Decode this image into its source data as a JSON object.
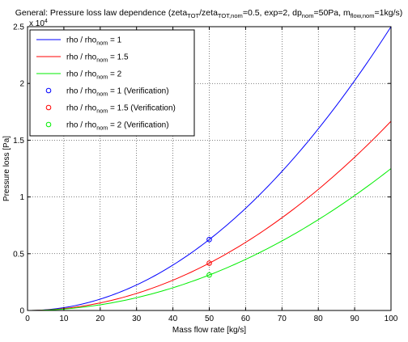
{
  "chart_data": {
    "type": "line",
    "title": "General: Pressure loss law dependence (zeta_TOT/zeta_TOT,nom=0.5, exp=2, dp_nom=50Pa, m_flow,nom=1kg/s)",
    "title_parts": [
      {
        "t": "General: Pressure loss law dependence (zeta",
        "sub": false
      },
      {
        "t": "TOT",
        "sub": true
      },
      {
        "t": "/zeta",
        "sub": false
      },
      {
        "t": "TOT,nom",
        "sub": true
      },
      {
        "t": "=0.5, exp=2, dp",
        "sub": false
      },
      {
        "t": "nom",
        "sub": true
      },
      {
        "t": "=50Pa, m",
        "sub": false
      },
      {
        "t": "flow,nom",
        "sub": true
      },
      {
        "t": "=1kg/s)",
        "sub": false
      }
    ],
    "xlabel": "Mass flow rate [kg/s]",
    "ylabel": "Pressure loss [Pa]",
    "y_exponent_label": "x 10",
    "y_exponent": "4",
    "xlim": [
      0,
      100
    ],
    "ylim": [
      0,
      25000
    ],
    "xticks": [
      0,
      10,
      20,
      30,
      40,
      50,
      60,
      70,
      80,
      90,
      100
    ],
    "yticks": [
      0,
      5000,
      10000,
      15000,
      20000,
      25000
    ],
    "ytick_labels": [
      "0",
      "0.5",
      "1",
      "1.5",
      "2",
      "2.5"
    ],
    "grid": true,
    "legend_position": "top-left",
    "series": [
      {
        "name": "rho / rho_nom = 1",
        "name_parts": [
          {
            "t": "rho / rho",
            "sub": false
          },
          {
            "t": "nom",
            "sub": true
          },
          {
            "t": " = 1",
            "sub": false
          }
        ],
        "kind": "line",
        "color": "#0000ff",
        "coef": 2.5,
        "x_range": [
          0,
          100
        ]
      },
      {
        "name": "rho / rho_nom = 1.5",
        "name_parts": [
          {
            "t": "rho / rho",
            "sub": false
          },
          {
            "t": "nom",
            "sub": true
          },
          {
            "t": " = 1.5",
            "sub": false
          }
        ],
        "kind": "line",
        "color": "#ff0000",
        "coef": 1.6667,
        "x_range": [
          0,
          100
        ]
      },
      {
        "name": "rho / rho_nom = 2",
        "name_parts": [
          {
            "t": "rho / rho",
            "sub": false
          },
          {
            "t": "nom",
            "sub": true
          },
          {
            "t": " = 2",
            "sub": false
          }
        ],
        "kind": "line",
        "color": "#00ee00",
        "coef": 1.25,
        "x_range": [
          0,
          100
        ]
      },
      {
        "name": "rho / rho_nom = 1 (Verification)",
        "name_parts": [
          {
            "t": "rho / rho",
            "sub": false
          },
          {
            "t": "nom",
            "sub": true
          },
          {
            "t": " = 1 (Verification)",
            "sub": false
          }
        ],
        "kind": "marker",
        "color": "#0000ff",
        "points": [
          [
            50,
            6250
          ]
        ]
      },
      {
        "name": "rho / rho_nom = 1.5 (Verification)",
        "name_parts": [
          {
            "t": "rho / rho",
            "sub": false
          },
          {
            "t": "nom",
            "sub": true
          },
          {
            "t": " = 1.5 (Verification)",
            "sub": false
          }
        ],
        "kind": "marker",
        "color": "#ff0000",
        "points": [
          [
            50,
            4167
          ]
        ]
      },
      {
        "name": "rho / rho_nom = 2 (Verification)",
        "name_parts": [
          {
            "t": "rho / rho",
            "sub": false
          },
          {
            "t": "nom",
            "sub": true
          },
          {
            "t": " = 2 (Verification)",
            "sub": false
          }
        ],
        "kind": "marker",
        "color": "#00ee00",
        "points": [
          [
            50,
            3125
          ]
        ]
      }
    ]
  }
}
